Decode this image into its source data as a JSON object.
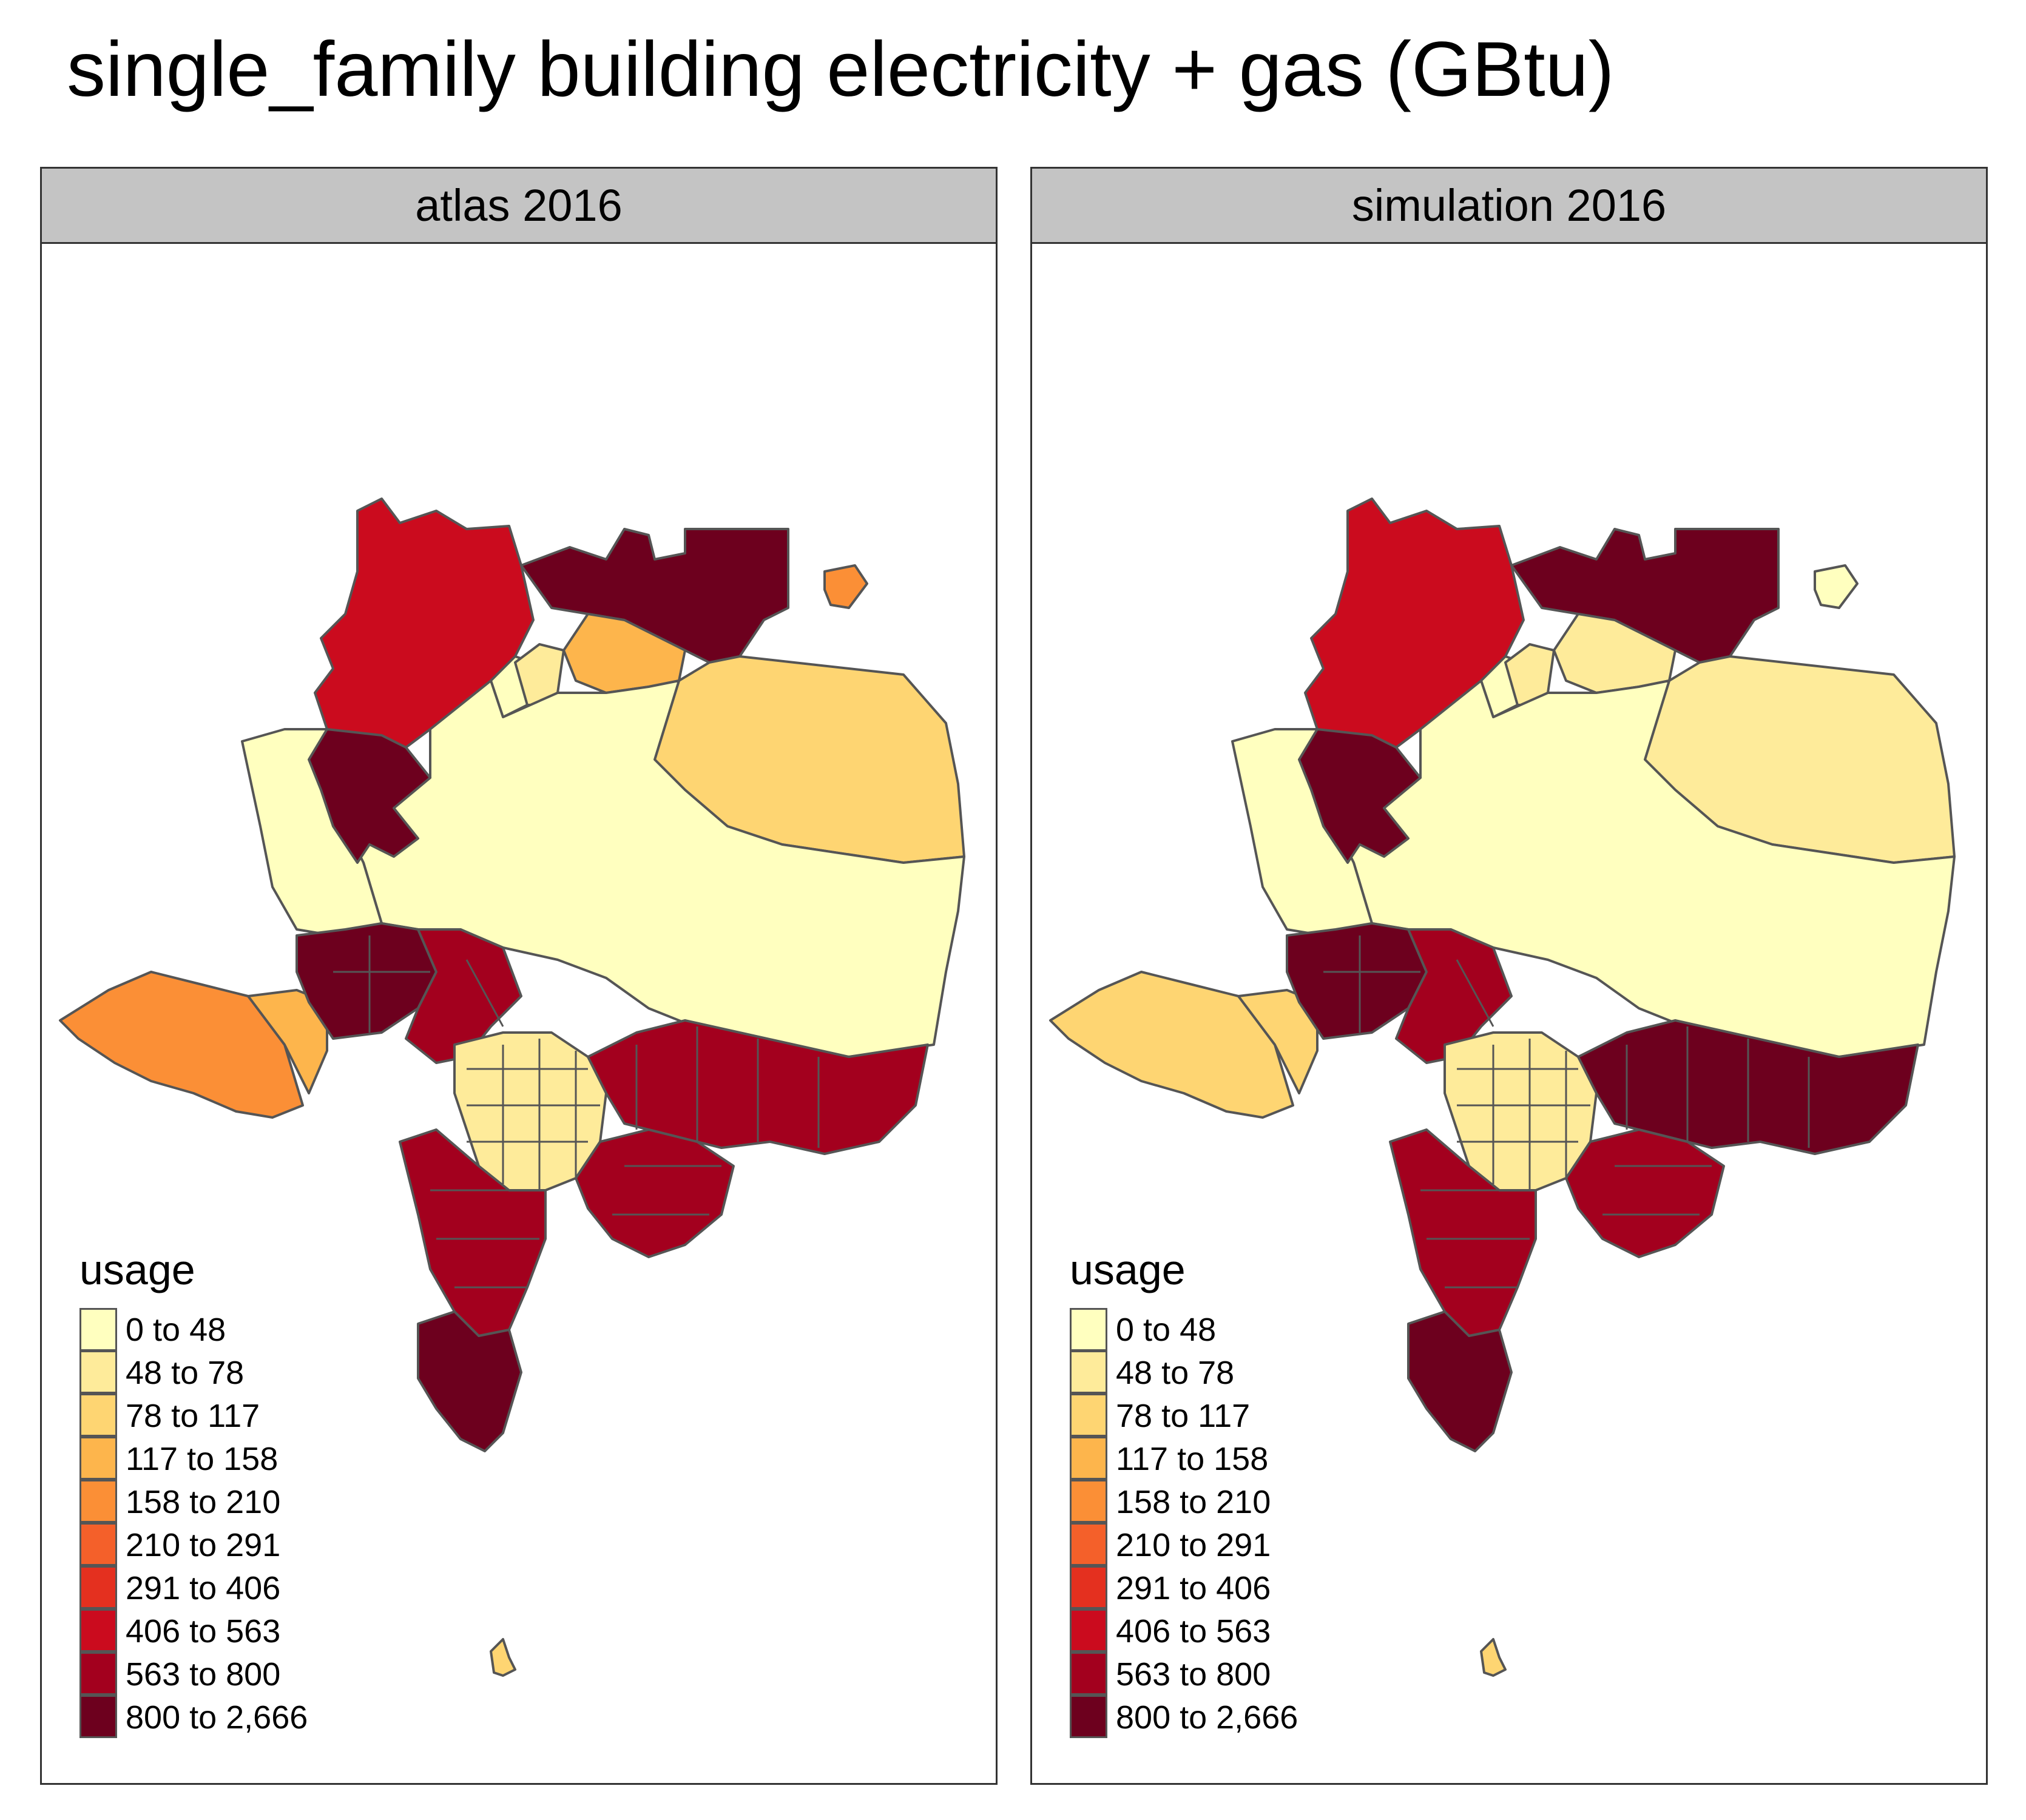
{
  "title": "single_family building electricity + gas (GBtu)",
  "panels": [
    {
      "label": "atlas 2016"
    },
    {
      "label": "simulation 2016"
    }
  ],
  "legend": {
    "title": "usage",
    "classes": [
      {
        "label": "0 to 48",
        "color": "#FFFFBF"
      },
      {
        "label": "48 to 78",
        "color": "#FEEB9A"
      },
      {
        "label": "78 to 117",
        "color": "#FED572"
      },
      {
        "label": "117 to 158",
        "color": "#FDB54C"
      },
      {
        "label": "158 to 210",
        "color": "#FB8F36"
      },
      {
        "label": "210 to 291",
        "color": "#F4602A"
      },
      {
        "label": "291 to 406",
        "color": "#E4301F"
      },
      {
        "label": "406 to 563",
        "color": "#CB0B1E"
      },
      {
        "label": "563 to 800",
        "color": "#A3001E"
      },
      {
        "label": "800 to 2,666",
        "color": "#6D001E"
      }
    ]
  },
  "regions_atlas": {
    "antelope_valley_west": 7,
    "north_east_block": 9,
    "north_central_1": 0,
    "north_central_2": 1,
    "north_corner_islet": 4,
    "north_strip": 3,
    "east_desert": 2,
    "central_desert": 0,
    "west_coast_strip": 0,
    "santa_clarita": 9,
    "malibu_west": 4,
    "malibu_central": 3,
    "sfv_west": 9,
    "sfv_central": 8,
    "la_central": 1,
    "south_bay": 8,
    "palos_verdes": 9,
    "san_gabriel_east": 8,
    "pomona": 8,
    "catalina": 2
  },
  "regions_simulation": {
    "antelope_valley_west": 7,
    "north_east_block": 9,
    "north_central_1": 0,
    "north_central_2": 1,
    "north_corner_islet": 0,
    "north_strip": 1,
    "east_desert": 1,
    "central_desert": 0,
    "west_coast_strip": 0,
    "santa_clarita": 9,
    "malibu_west": 2,
    "malibu_central": 2,
    "sfv_west": 9,
    "sfv_central": 8,
    "la_central": 1,
    "south_bay": 8,
    "palos_verdes": 9,
    "san_gabriel_east": 9,
    "pomona": 8,
    "catalina": 2
  }
}
